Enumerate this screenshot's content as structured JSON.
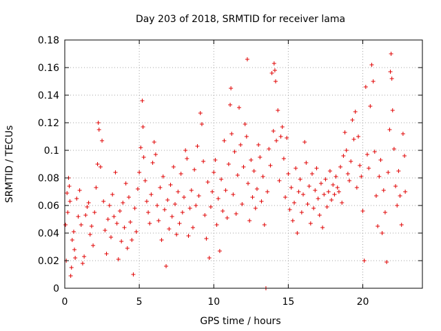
{
  "chart_data": {
    "type": "scatter",
    "title": "Day 203 of 2018, SRMTID for receiver lama",
    "xlabel": "GPS time / hours",
    "ylabel": "SRMTID / TECUs",
    "xlim": [
      0,
      24
    ],
    "ylim": [
      0,
      0.18
    ],
    "x_ticks": [
      0,
      5,
      10,
      15,
      20
    ],
    "x_tick_labels": [
      "0",
      "5",
      "10",
      "15",
      "20"
    ],
    "y_ticks": [
      0,
      0.02,
      0.04,
      0.06,
      0.08,
      0.1,
      0.12,
      0.14,
      0.16,
      0.18
    ],
    "y_tick_labels": [
      "0",
      "0.02",
      "0.04",
      "0.06",
      "0.08",
      "0.1",
      "0.12",
      "0.14",
      "0.16",
      "0.18"
    ],
    "grid": true,
    "marker": "+",
    "marker_color": "#e00000",
    "series": [
      {
        "name": "SRMTID",
        "color": "#e00000",
        "points": [
          [
            0.05,
            0.046
          ],
          [
            0.1,
            0.02
          ],
          [
            0.15,
            0.069
          ],
          [
            0.2,
            0.055
          ],
          [
            0.25,
            0.08
          ],
          [
            0.3,
            0.074
          ],
          [
            0.35,
            0.063
          ],
          [
            0.4,
            0.009
          ],
          [
            0.45,
            0.015
          ],
          [
            0.5,
            0.035
          ],
          [
            0.6,
            0.041
          ],
          [
            0.65,
            0.028
          ],
          [
            0.7,
            0.022
          ],
          [
            0.8,
            0.065
          ],
          [
            0.9,
            0.052
          ],
          [
            1.0,
            0.071
          ],
          [
            1.1,
            0.046
          ],
          [
            1.2,
            0.018
          ],
          [
            1.3,
            0.023
          ],
          [
            1.4,
            0.053
          ],
          [
            1.5,
            0.059
          ],
          [
            1.6,
            0.062
          ],
          [
            1.7,
            0.039
          ],
          [
            1.8,
            0.045
          ],
          [
            1.9,
            0.031
          ],
          [
            2.0,
            0.055
          ],
          [
            2.1,
            0.073
          ],
          [
            2.2,
            0.09
          ],
          [
            2.25,
            0.12
          ],
          [
            2.3,
            0.115
          ],
          [
            2.4,
            0.088
          ],
          [
            2.5,
            0.107
          ],
          [
            2.6,
            0.063
          ],
          [
            2.7,
            0.042
          ],
          [
            2.8,
            0.025
          ],
          [
            2.9,
            0.05
          ],
          [
            3.0,
            0.06
          ],
          [
            3.1,
            0.037
          ],
          [
            3.2,
            0.068
          ],
          [
            3.3,
            0.052
          ],
          [
            3.4,
            0.084
          ],
          [
            3.5,
            0.047
          ],
          [
            3.6,
            0.021
          ],
          [
            3.7,
            0.056
          ],
          [
            3.8,
            0.034
          ],
          [
            3.9,
            0.062
          ],
          [
            4.0,
            0.044
          ],
          [
            4.1,
            0.076
          ],
          [
            4.2,
            0.029
          ],
          [
            4.3,
            0.066
          ],
          [
            4.4,
            0.048
          ],
          [
            4.5,
            0.035
          ],
          [
            4.6,
            0.01
          ],
          [
            4.7,
            0.058
          ],
          [
            4.8,
            0.041
          ],
          [
            4.9,
            0.072
          ],
          [
            5.0,
            0.084
          ],
          [
            5.1,
            0.102
          ],
          [
            5.2,
            0.136
          ],
          [
            5.25,
            0.117
          ],
          [
            5.3,
            0.095
          ],
          [
            5.4,
            0.078
          ],
          [
            5.5,
            0.063
          ],
          [
            5.6,
            0.055
          ],
          [
            5.7,
            0.047
          ],
          [
            5.8,
            0.068
          ],
          [
            5.9,
            0.091
          ],
          [
            6.0,
            0.106
          ],
          [
            6.1,
            0.097
          ],
          [
            6.2,
            0.06
          ],
          [
            6.3,
            0.049
          ],
          [
            6.4,
            0.073
          ],
          [
            6.5,
            0.035
          ],
          [
            6.6,
            0.081
          ],
          [
            6.7,
            0.057
          ],
          [
            6.8,
            0.016
          ],
          [
            6.9,
            0.064
          ],
          [
            7.0,
            0.043
          ],
          [
            7.1,
            0.075
          ],
          [
            7.2,
            0.052
          ],
          [
            7.3,
            0.088
          ],
          [
            7.4,
            0.061
          ],
          [
            7.5,
            0.039
          ],
          [
            7.6,
            0.07
          ],
          [
            7.7,
            0.047
          ],
          [
            7.8,
            0.083
          ],
          [
            7.9,
            0.055
          ],
          [
            8.0,
            0.066
          ],
          [
            8.1,
            0.1
          ],
          [
            8.2,
            0.094
          ],
          [
            8.3,
            0.038
          ],
          [
            8.4,
            0.058
          ],
          [
            8.5,
            0.071
          ],
          [
            8.6,
            0.044
          ],
          [
            8.7,
            0.086
          ],
          [
            8.8,
            0.06
          ],
          [
            8.9,
            0.103
          ],
          [
            9.0,
            0.067
          ],
          [
            9.1,
            0.127
          ],
          [
            9.2,
            0.119
          ],
          [
            9.3,
            0.092
          ],
          [
            9.4,
            0.053
          ],
          [
            9.5,
            0.036
          ],
          [
            9.6,
            0.077
          ],
          [
            9.7,
            0.022
          ],
          [
            9.8,
            0.059
          ],
          [
            9.9,
            0.07
          ],
          [
            10.0,
            0.084
          ],
          [
            10.1,
            0.093
          ],
          [
            10.2,
            0.046
          ],
          [
            10.3,
            0.065
          ],
          [
            10.4,
            0.027
          ],
          [
            10.5,
            0.079
          ],
          [
            10.6,
            0.056
          ],
          [
            10.7,
            0.107
          ],
          [
            10.8,
            0.071
          ],
          [
            10.9,
            0.051
          ],
          [
            11.0,
            0.09
          ],
          [
            11.1,
            0.133
          ],
          [
            11.15,
            0.145
          ],
          [
            11.2,
            0.112
          ],
          [
            11.3,
            0.068
          ],
          [
            11.4,
            0.099
          ],
          [
            11.5,
            0.054
          ],
          [
            11.6,
            0.082
          ],
          [
            11.7,
            0.131
          ],
          [
            11.8,
            0.104
          ],
          [
            11.9,
            0.061
          ],
          [
            12.0,
            0.088
          ],
          [
            12.1,
            0.119
          ],
          [
            12.2,
            0.11
          ],
          [
            12.25,
            0.166
          ],
          [
            12.3,
            0.076
          ],
          [
            12.4,
            0.049
          ],
          [
            12.5,
            0.093
          ],
          [
            12.6,
            0.066
          ],
          [
            12.7,
            0.085
          ],
          [
            12.8,
            0.058
          ],
          [
            12.9,
            0.072
          ],
          [
            13.0,
            0.104
          ],
          [
            13.1,
            0.095
          ],
          [
            13.2,
            0.063
          ],
          [
            13.3,
            0.081
          ],
          [
            13.4,
            0.046
          ],
          [
            13.5,
            0.0
          ],
          [
            13.6,
            0.07
          ],
          [
            13.7,
            0.101
          ],
          [
            13.8,
            0.089
          ],
          [
            13.9,
            0.156
          ],
          [
            14.0,
            0.114
          ],
          [
            14.05,
            0.163
          ],
          [
            14.1,
            0.158
          ],
          [
            14.15,
            0.15
          ],
          [
            14.2,
            0.107
          ],
          [
            14.3,
            0.129
          ],
          [
            14.4,
            0.078
          ],
          [
            14.5,
            0.11
          ],
          [
            14.6,
            0.117
          ],
          [
            14.7,
            0.094
          ],
          [
            14.8,
            0.066
          ],
          [
            14.9,
            0.109
          ],
          [
            15.0,
            0.083
          ],
          [
            15.1,
            0.057
          ],
          [
            15.2,
            0.073
          ],
          [
            15.3,
            0.049
          ],
          [
            15.4,
            0.062
          ],
          [
            15.5,
            0.087
          ],
          [
            15.6,
            0.04
          ],
          [
            15.7,
            0.07
          ],
          [
            15.8,
            0.079
          ],
          [
            15.9,
            0.055
          ],
          [
            16.0,
            0.068
          ],
          [
            16.1,
            0.106
          ],
          [
            16.2,
            0.091
          ],
          [
            16.3,
            0.061
          ],
          [
            16.4,
            0.074
          ],
          [
            16.5,
            0.047
          ],
          [
            16.6,
            0.083
          ],
          [
            16.7,
            0.058
          ],
          [
            16.8,
            0.071
          ],
          [
            16.9,
            0.087
          ],
          [
            17.0,
            0.065
          ],
          [
            17.1,
            0.053
          ],
          [
            17.2,
            0.076
          ],
          [
            17.3,
            0.044
          ],
          [
            17.4,
            0.068
          ],
          [
            17.5,
            0.079
          ],
          [
            17.6,
            0.059
          ],
          [
            17.7,
            0.07
          ],
          [
            17.8,
            0.085
          ],
          [
            17.9,
            0.064
          ],
          [
            18.0,
            0.075
          ],
          [
            18.1,
            0.068
          ],
          [
            18.2,
            0.081
          ],
          [
            18.3,
            0.073
          ],
          [
            18.4,
            0.07
          ],
          [
            18.5,
            0.088
          ],
          [
            18.6,
            0.062
          ],
          [
            18.7,
            0.096
          ],
          [
            18.8,
            0.113
          ],
          [
            18.9,
            0.1
          ],
          [
            19.0,
            0.083
          ],
          [
            19.1,
            0.078
          ],
          [
            19.2,
            0.092
          ],
          [
            19.3,
            0.122
          ],
          [
            19.4,
            0.108
          ],
          [
            19.5,
            0.128
          ],
          [
            19.6,
            0.073
          ],
          [
            19.7,
            0.11
          ],
          [
            19.8,
            0.089
          ],
          [
            19.9,
            0.081
          ],
          [
            20.0,
            0.056
          ],
          [
            20.1,
            0.02
          ],
          [
            20.2,
            0.146
          ],
          [
            20.3,
            0.097
          ],
          [
            20.4,
            0.087
          ],
          [
            20.5,
            0.132
          ],
          [
            20.6,
            0.162
          ],
          [
            20.7,
            0.15
          ],
          [
            20.8,
            0.099
          ],
          [
            20.9,
            0.067
          ],
          [
            21.0,
            0.045
          ],
          [
            21.1,
            0.081
          ],
          [
            21.2,
            0.093
          ],
          [
            21.3,
            0.04
          ],
          [
            21.4,
            0.071
          ],
          [
            21.5,
            0.055
          ],
          [
            21.6,
            0.019
          ],
          [
            21.7,
            0.084
          ],
          [
            21.8,
            0.115
          ],
          [
            21.85,
            0.157
          ],
          [
            21.9,
            0.17
          ],
          [
            21.95,
            0.152
          ],
          [
            22.0,
            0.129
          ],
          [
            22.1,
            0.101
          ],
          [
            22.2,
            0.074
          ],
          [
            22.3,
            0.06
          ],
          [
            22.4,
            0.085
          ],
          [
            22.5,
            0.067
          ],
          [
            22.6,
            0.046
          ],
          [
            22.7,
            0.112
          ],
          [
            22.8,
            0.096
          ],
          [
            22.85,
            0.07
          ]
        ]
      }
    ]
  }
}
